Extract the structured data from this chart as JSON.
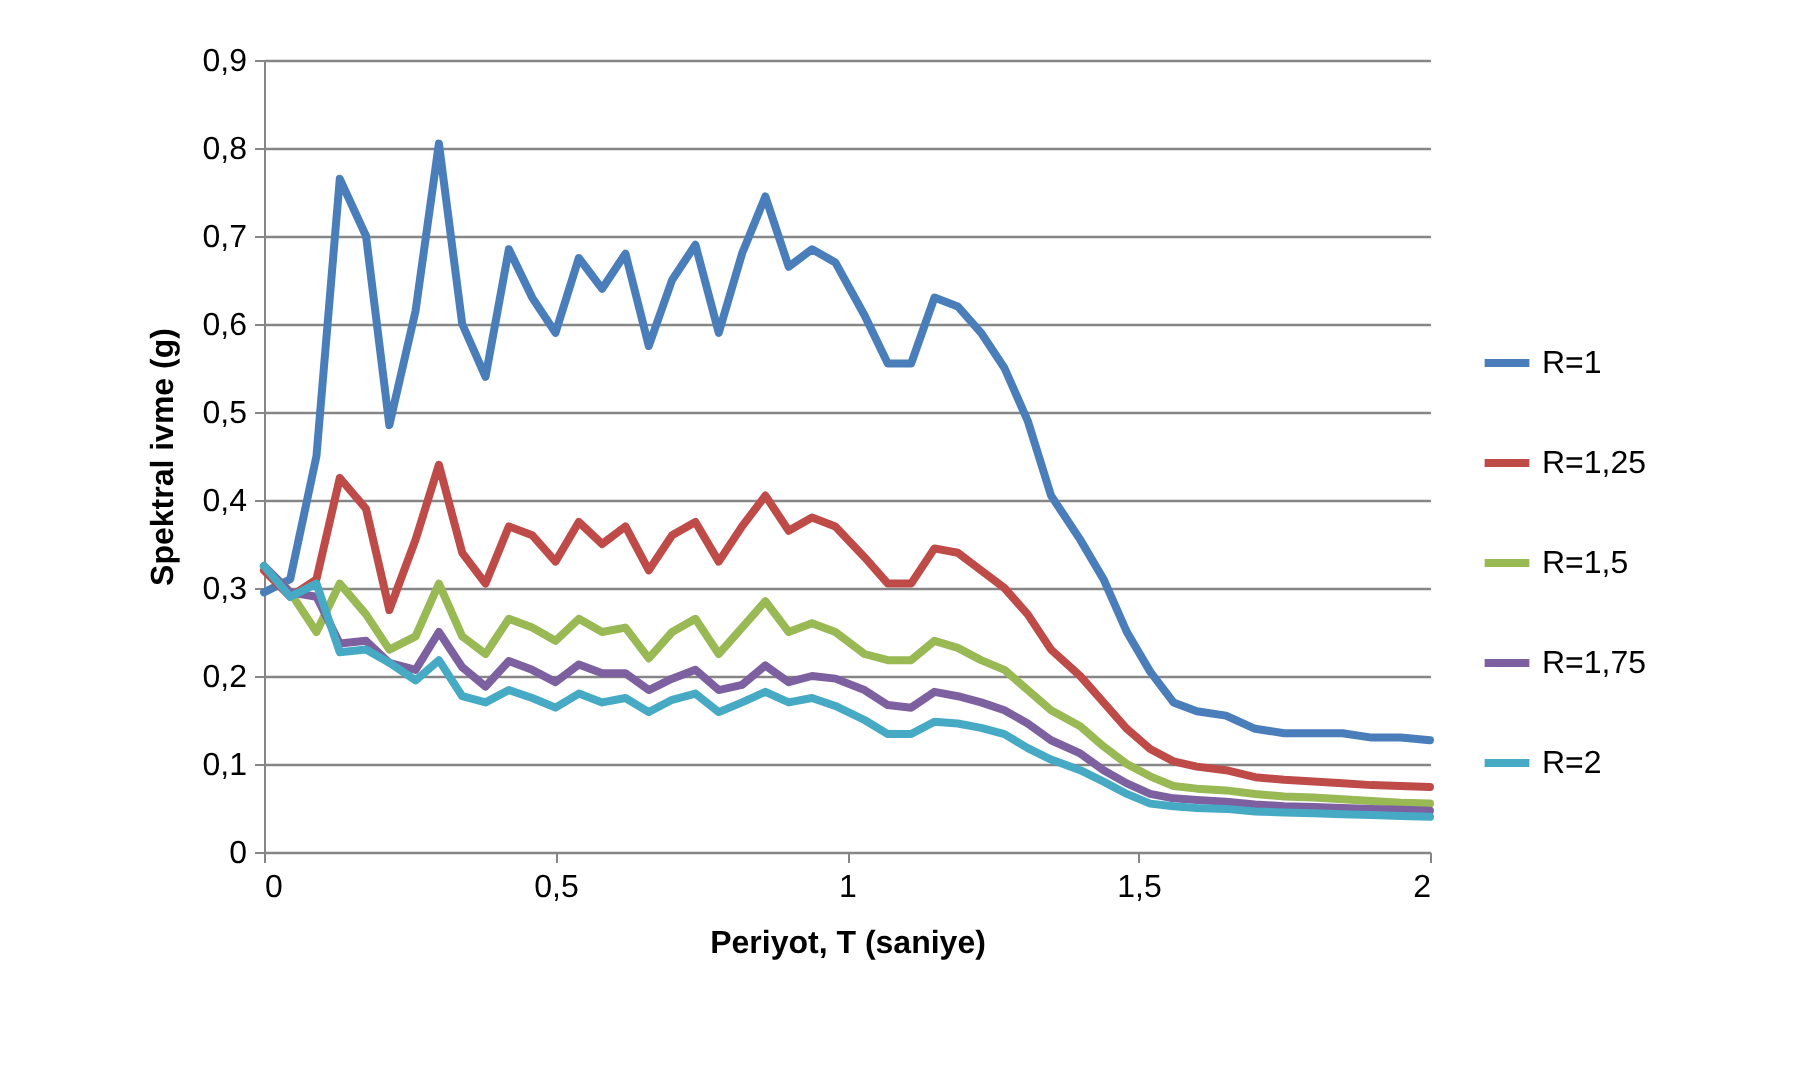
{
  "chart_data": {
    "type": "line",
    "xlabel": "Periyot, T (saniye)",
    "ylabel": "Spektral ivme (g)",
    "x": [
      0,
      0.045,
      0.09,
      0.13,
      0.175,
      0.215,
      0.26,
      0.3,
      0.34,
      0.38,
      0.42,
      0.46,
      0.5,
      0.54,
      0.58,
      0.62,
      0.66,
      0.7,
      0.74,
      0.78,
      0.82,
      0.86,
      0.9,
      0.94,
      0.98,
      1.03,
      1.07,
      1.11,
      1.15,
      1.19,
      1.23,
      1.27,
      1.31,
      1.35,
      1.4,
      1.44,
      1.48,
      1.52,
      1.56,
      1.6,
      1.65,
      1.7,
      1.75,
      1.8,
      1.85,
      1.9,
      1.95,
      2.0
    ],
    "series": [
      {
        "name": "R=1",
        "color": "#4a7ebb",
        "values": [
          0.295,
          0.31,
          0.45,
          0.765,
          0.7,
          0.485,
          0.615,
          0.805,
          0.6,
          0.54,
          0.685,
          0.63,
          0.59,
          0.675,
          0.64,
          0.68,
          0.575,
          0.65,
          0.69,
          0.59,
          0.68,
          0.745,
          0.665,
          0.685,
          0.67,
          0.61,
          0.555,
          0.555,
          0.63,
          0.62,
          0.59,
          0.55,
          0.49,
          0.405,
          0.355,
          0.31,
          0.25,
          0.205,
          0.17,
          0.16,
          0.155,
          0.14,
          0.135,
          0.135,
          0.135,
          0.13,
          0.13,
          0.127
        ]
      },
      {
        "name": "R=1,25",
        "color": "#be4b48",
        "values": [
          0.32,
          0.29,
          0.31,
          0.425,
          0.39,
          0.275,
          0.355,
          0.44,
          0.34,
          0.305,
          0.37,
          0.36,
          0.33,
          0.375,
          0.35,
          0.37,
          0.32,
          0.36,
          0.375,
          0.33,
          0.37,
          0.405,
          0.365,
          0.38,
          0.37,
          0.335,
          0.305,
          0.305,
          0.345,
          0.34,
          0.32,
          0.3,
          0.27,
          0.23,
          0.2,
          0.17,
          0.14,
          0.117,
          0.103,
          0.097,
          0.093,
          0.085,
          0.082,
          0.08,
          0.078,
          0.076,
          0.075,
          0.074
        ]
      },
      {
        "name": "R=1,5",
        "color": "#98b954",
        "values": [
          0.325,
          0.295,
          0.25,
          0.305,
          0.27,
          0.23,
          0.245,
          0.305,
          0.245,
          0.225,
          0.265,
          0.255,
          0.24,
          0.265,
          0.25,
          0.255,
          0.22,
          0.25,
          0.265,
          0.225,
          0.255,
          0.285,
          0.25,
          0.26,
          0.25,
          0.225,
          0.218,
          0.218,
          0.24,
          0.232,
          0.218,
          0.207,
          0.184,
          0.161,
          0.143,
          0.12,
          0.1,
          0.086,
          0.075,
          0.072,
          0.07,
          0.066,
          0.063,
          0.062,
          0.06,
          0.058,
          0.056,
          0.055
        ]
      },
      {
        "name": "R=1,75",
        "color": "#7d60a0",
        "values": [
          0.325,
          0.295,
          0.29,
          0.237,
          0.24,
          0.215,
          0.207,
          0.25,
          0.21,
          0.188,
          0.217,
          0.207,
          0.193,
          0.213,
          0.203,
          0.203,
          0.184,
          0.197,
          0.207,
          0.184,
          0.19,
          0.212,
          0.193,
          0.2,
          0.197,
          0.184,
          0.167,
          0.164,
          0.182,
          0.177,
          0.17,
          0.161,
          0.146,
          0.127,
          0.112,
          0.093,
          0.078,
          0.066,
          0.061,
          0.059,
          0.057,
          0.054,
          0.052,
          0.051,
          0.05,
          0.049,
          0.048,
          0.047
        ]
      },
      {
        "name": "R=2",
        "color": "#46aac5",
        "values": [
          0.325,
          0.29,
          0.305,
          0.227,
          0.23,
          0.215,
          0.195,
          0.218,
          0.177,
          0.17,
          0.184,
          0.175,
          0.164,
          0.18,
          0.17,
          0.175,
          0.159,
          0.173,
          0.18,
          0.159,
          0.17,
          0.182,
          0.17,
          0.175,
          0.166,
          0.15,
          0.134,
          0.134,
          0.148,
          0.146,
          0.141,
          0.134,
          0.118,
          0.105,
          0.093,
          0.08,
          0.066,
          0.055,
          0.052,
          0.05,
          0.049,
          0.046,
          0.045,
          0.044,
          0.043,
          0.042,
          0.041,
          0.04
        ]
      }
    ],
    "xlim": [
      0,
      2
    ],
    "xticks": [
      0,
      {
        "value": 0.5,
        "label": "0,5"
      },
      1,
      {
        "value": 1.5,
        "label": "1,5"
      },
      2
    ],
    "ylim": [
      0,
      0.9
    ],
    "yticks": [
      0,
      {
        "value": 0.1,
        "label": "0,1"
      },
      {
        "value": 0.2,
        "label": "0,2"
      },
      {
        "value": 0.3,
        "label": "0,3"
      },
      {
        "value": 0.4,
        "label": "0,4"
      },
      {
        "value": 0.5,
        "label": "0,5"
      },
      {
        "value": 0.6,
        "label": "0,6"
      },
      {
        "value": 0.7,
        "label": "0,7"
      },
      {
        "value": 0.8,
        "label": "0,8"
      },
      {
        "value": 0.9,
        "label": "0,9"
      }
    ],
    "grid": "y",
    "legend": "right",
    "marker": "none",
    "line_style": "solid"
  }
}
